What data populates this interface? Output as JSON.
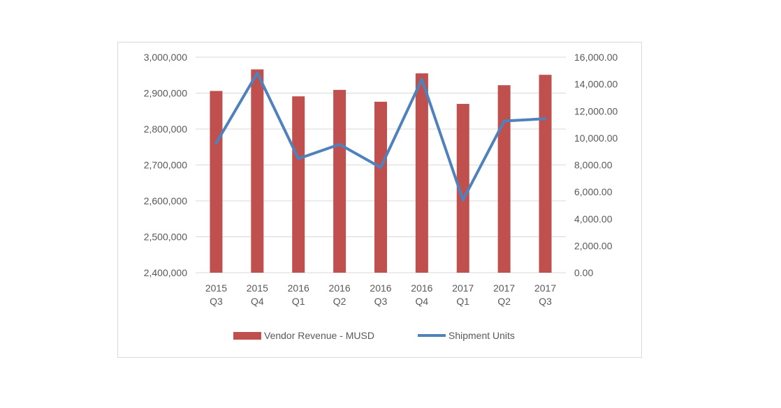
{
  "chart_data": {
    "type": "bar+line",
    "title": "",
    "categories": [
      [
        "2015",
        "Q3"
      ],
      [
        "2015",
        "Q4"
      ],
      [
        "2016",
        "Q1"
      ],
      [
        "2016",
        "Q2"
      ],
      [
        "2016",
        "Q3"
      ],
      [
        "2016",
        "Q4"
      ],
      [
        "2017",
        "Q1"
      ],
      [
        "2017",
        "Q2"
      ],
      [
        "2017",
        "Q3"
      ]
    ],
    "series": [
      {
        "name": "Vendor Revenue - MUSD",
        "type": "bar",
        "axis": "left",
        "color": "#c0504d",
        "values": [
          2906000,
          2966000,
          2891000,
          2909000,
          2876000,
          2955000,
          2870000,
          2922000,
          2951000
        ]
      },
      {
        "name": "Shipment Units",
        "type": "line",
        "axis": "right",
        "color": "#4f81bd",
        "values": [
          9620,
          14830,
          8465,
          9530,
          7810,
          14360,
          5400,
          11260,
          11430
        ]
      }
    ],
    "left_axis": {
      "ylim": [
        2400000,
        3000000
      ],
      "ticks": [
        "2,400,000",
        "2,500,000",
        "2,600,000",
        "2,700,000",
        "2,800,000",
        "2,900,000",
        "3,000,000"
      ]
    },
    "right_axis": {
      "ylim": [
        0,
        16000
      ],
      "ticks": [
        "0.00",
        "2,000.00",
        "4,000.00",
        "6,000.00",
        "8,000.00",
        "10,000.00",
        "12,000.00",
        "14,000.00",
        "16,000.00"
      ]
    },
    "grid": true,
    "legend": "bottom",
    "gridline_color": "#d9d9d9"
  }
}
